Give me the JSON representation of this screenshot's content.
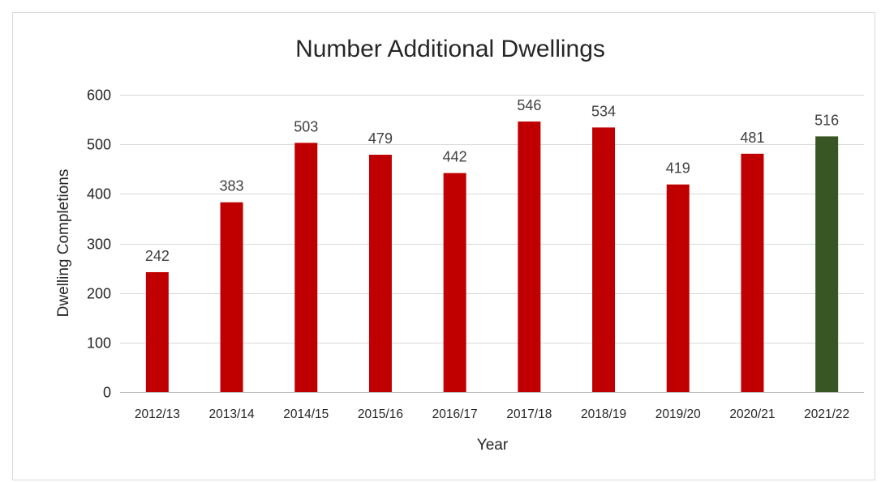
{
  "chart_data": {
    "type": "bar",
    "title": "Number Additional Dwellings",
    "xlabel": "Year",
    "ylabel": "Dwelling Completions",
    "categories": [
      "2012/13",
      "2013/14",
      "2014/15",
      "2015/16",
      "2016/17",
      "2017/18",
      "2018/19",
      "2019/20",
      "2020/21",
      "2021/22"
    ],
    "values": [
      242,
      383,
      503,
      479,
      442,
      546,
      534,
      419,
      481,
      516
    ],
    "data_labels": [
      "242",
      "383",
      "503",
      "479",
      "442",
      "546",
      "534",
      "419",
      "481",
      "516"
    ],
    "bar_colors": [
      "#c00000",
      "#c00000",
      "#c00000",
      "#c00000",
      "#c00000",
      "#c00000",
      "#c00000",
      "#c00000",
      "#c00000",
      "#375623"
    ],
    "ylim": [
      0,
      600
    ],
    "yticks": [
      "0",
      "100",
      "200",
      "300",
      "400",
      "500",
      "600"
    ],
    "grid": true,
    "legend": "none"
  }
}
